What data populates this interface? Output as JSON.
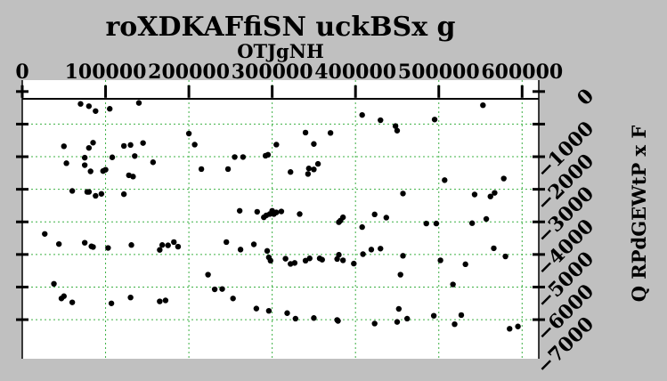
{
  "chart_data": {
    "type": "scatter",
    "title": "roXDKAFfiSN uckBSx g",
    "xlabel": "OTJgNH",
    "ylabel": "Q RPdGEWtP x F",
    "xlim": [
      0,
      620000
    ],
    "ylim": [
      -8200,
      350
    ],
    "x_ticks": [
      "0",
      "100000",
      "200000",
      "300000",
      "400000",
      "500000",
      "600000"
    ],
    "y_ticks": [
      "0",
      "−1000",
      "−2000",
      "−3000",
      "−4000",
      "−5000",
      "−6000",
      "−7000"
    ],
    "grid": true,
    "grid_color": "#3cb043",
    "point_color": "#000000",
    "series": [
      {
        "x": [
          70000,
          80000,
          88000,
          105000,
          140000,
          408000,
          430000,
          448000,
          450000,
          495000,
          553000,
          50000,
          80000,
          85000,
          108000,
          122000,
          130000,
          135000,
          145000,
          157000,
          53000,
          75000,
          75000,
          82000,
          97000,
          100000,
          128000,
          133000,
          200000,
          207000,
          215000,
          255000,
          265000,
          292000,
          295000,
          305000,
          340000,
          350000,
          355000,
          370000,
          60000,
          78000,
          80000,
          88000,
          95000,
          122000,
          247000,
          261000,
          282000,
          290000,
          293000,
          297000,
          300000,
          302000,
          305000,
          311000,
          322000,
          333000,
          343000,
          344000,
          350000,
          380000,
          382000,
          385000,
          408000,
          423000,
          437000,
          457000,
          485000,
          497000,
          507000,
          540000,
          543000,
          557000,
          562000,
          567000,
          578000,
          27000,
          44000,
          75000,
          83000,
          85000,
          103000,
          131000,
          165000,
          168000,
          175000,
          182000,
          187000,
          223000,
          245000,
          262000,
          278000,
          294000,
          296000,
          298000,
          316000,
          322000,
          327000,
          340000,
          345000,
          357000,
          360000,
          378000,
          380000,
          385000,
          398000,
          409000,
          419000,
          430000,
          454000,
          457000,
          502000,
          517000,
          532000,
          566000,
          580000,
          38000,
          47000,
          50000,
          60000,
          107000,
          130000,
          165000,
          172000,
          231000,
          240000,
          253000,
          281000,
          296000,
          318000,
          328000,
          350000,
          378000,
          379000,
          423000,
          450000,
          452000,
          462000,
          494000,
          519000,
          527000,
          585000,
          595000
        ],
        "y": [
          -380,
          -450,
          -600,
          -530,
          -350,
          -720,
          -880,
          -1060,
          -1200,
          -860,
          -420,
          -1680,
          -1730,
          -1570,
          -2020,
          -1670,
          -1640,
          -1980,
          -1580,
          -2170,
          -2200,
          -2030,
          -2260,
          -2450,
          -2440,
          -2400,
          -2570,
          -2610,
          -1290,
          -1630,
          -2380,
          -2010,
          -2010,
          -1970,
          -1940,
          -1630,
          -1260,
          -1610,
          -2220,
          -1270,
          -3050,
          -3080,
          -3080,
          -3200,
          -3140,
          -3150,
          -2380,
          -3660,
          -3690,
          -3860,
          -3800,
          -3760,
          -3660,
          -3760,
          -3710,
          -3680,
          -2470,
          -3760,
          -2530,
          -2360,
          -2390,
          -4010,
          -3960,
          -3860,
          -4160,
          -3770,
          -3870,
          -3130,
          -4050,
          -4050,
          -2720,
          -4040,
          -3160,
          -3910,
          -3220,
          -3110,
          -2670,
          -4370,
          -4680,
          -4640,
          -4750,
          -4770,
          -4800,
          -4710,
          -4860,
          -4710,
          -4720,
          -4620,
          -4760,
          -5620,
          -4620,
          -4850,
          -4690,
          -4890,
          -5090,
          -5190,
          -5130,
          -5290,
          -5260,
          -5190,
          -5120,
          -5120,
          -5160,
          -5140,
          -5010,
          -5180,
          -5280,
          -4990,
          -4850,
          -4820,
          -5620,
          -5040,
          -5180,
          -5920,
          -5300,
          -4810,
          -5060,
          -5900,
          -6350,
          -6280,
          -6470,
          -6500,
          -6320,
          -6440,
          -6410,
          -6070,
          -6060,
          -6350,
          -6660,
          -6730,
          -6800,
          -6970,
          -6950,
          -7010,
          -7040,
          -7120,
          -7070,
          -6670,
          -6970,
          -6880,
          -7140,
          -6860,
          -7280,
          -7210
        ]
      }
    ]
  }
}
